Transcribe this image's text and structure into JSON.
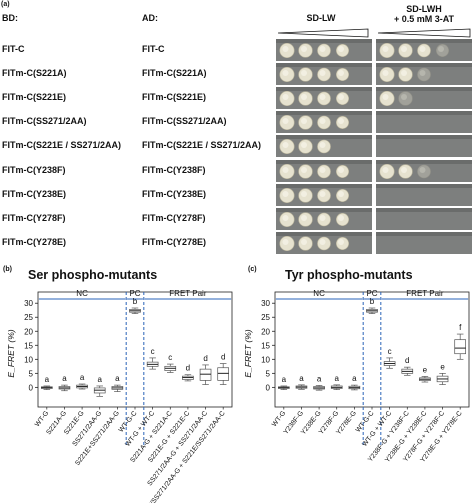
{
  "figure": {
    "panel_a": {
      "label": "(a)",
      "bd_header": "BD:",
      "ad_header": "AD:",
      "assay_lw": "SD-LW",
      "assay_lwh_line1": "SD-LWH",
      "assay_lwh_line2": "+ 0.5 mM 3-AT",
      "rows": [
        {
          "bd": "FIT-C",
          "ad": "FIT-C",
          "lw": 4,
          "lwh": 3
        },
        {
          "bd": "FITm-C(S221A)",
          "ad": "FITm-C(S221A)",
          "lw": 4,
          "lwh": 2
        },
        {
          "bd": "FITm-C(S221E)",
          "ad": "FITm-C(S221E)",
          "lw": 4,
          "lwh": 1
        },
        {
          "bd": "FITm-C(SS271/2AA)",
          "ad": "FITm-C(SS271/2AA)",
          "lw": 4,
          "lwh": 0
        },
        {
          "bd": "FITm-C(S221E / SS271/2AA)",
          "ad": "FITm-C(S221E / SS271/2AA)",
          "lw": 3,
          "lwh": 0
        },
        {
          "bd": "FITm-C(Y238F)",
          "ad": "FITm-C(Y238F)",
          "lw": 4,
          "lwh": 2
        },
        {
          "bd": "FITm-C(Y238E)",
          "ad": "FITm-C(Y238E)",
          "lw": 4,
          "lwh": 0
        },
        {
          "bd": "FITm-C(Y278F)",
          "ad": "FITm-C(Y278F)",
          "lw": 4,
          "lwh": 0
        },
        {
          "bd": "FITm-C(Y278E)",
          "ad": "FITm-C(Y278E)",
          "lw": 4,
          "lwh": 0
        }
      ]
    },
    "panel_b": {
      "label": "(b)",
      "title": "Ser phospho-mutants",
      "ylabel": "E_FRET (%)",
      "group_labels": [
        "NC",
        "PC",
        "FRET Pair"
      ]
    },
    "panel_c": {
      "label": "(c)",
      "title": "Tyr phospho-mutants",
      "ylabel": "E_FRET (%)",
      "group_labels": [
        "NC",
        "PC",
        "FRET Pair"
      ]
    }
  },
  "chart_data": [
    {
      "type": "box",
      "title": "Ser phospho-mutants",
      "ylabel": "E_FRET (%)",
      "ylim": [
        -7,
        34
      ],
      "yticks": [
        0,
        5,
        10,
        15,
        20,
        25,
        30
      ],
      "categories": [
        "WT-G",
        "S221A-G",
        "S221E-G",
        "SS271/2AA-G",
        "S221E+SS271/2AA-G",
        "WT-G-C",
        "WT-G + WT-C",
        "S221A-G + S221A-C",
        "S221E-G + S221E-C",
        "SS271/2AA-G + SS271/2AA-C",
        "S221E/SS271/2AA-G + S221E/SS271/2AA-C"
      ],
      "medians": [
        -0.1,
        -0.2,
        0.3,
        -1.0,
        -0.2,
        27.3,
        8.2,
        6.8,
        3.5,
        4.7,
        5.0
      ],
      "q1": [
        -0.4,
        -0.6,
        -0.2,
        -2.0,
        -0.7,
        26.8,
        7.5,
        6.0,
        2.8,
        2.5,
        2.5
      ],
      "q3": [
        0.2,
        0.3,
        0.8,
        -0.2,
        0.3,
        27.8,
        9.0,
        7.5,
        4.0,
        6.5,
        7.0
      ],
      "whisker_low": [
        -0.8,
        -1.2,
        -0.6,
        -3.2,
        -1.5,
        26.3,
        6.5,
        5.3,
        2.3,
        1.0,
        1.0
      ],
      "whisker_high": [
        0.5,
        0.8,
        1.2,
        0.5,
        0.8,
        28.3,
        10.5,
        8.3,
        4.5,
        8.0,
        8.5
      ],
      "significance_letters": [
        "a",
        "a",
        "a",
        "a",
        "a",
        "b",
        "c",
        "c",
        "d",
        "d",
        "d"
      ],
      "groups": [
        {
          "name": "NC",
          "range": [
            0,
            4
          ]
        },
        {
          "name": "PC",
          "range": [
            5,
            5
          ]
        },
        {
          "name": "FRET Pair",
          "range": [
            6,
            10
          ]
        }
      ]
    },
    {
      "type": "box",
      "title": "Tyr phospho-mutants",
      "ylabel": "E_FRET (%)",
      "ylim": [
        -7,
        34
      ],
      "yticks": [
        0,
        5,
        10,
        15,
        20,
        25,
        30
      ],
      "categories": [
        "WT-G",
        "Y238F-G",
        "Y238E-G",
        "Y278F-G",
        "Y278E-G",
        "WT-G-C",
        "WT-G + WT-C",
        "Y238F-G + Y238F-C",
        "Y238E-G + Y238E-C",
        "Y278F-G + Y278F-C",
        "Y278E-G + Y278E-C"
      ],
      "medians": [
        -0.1,
        0.1,
        -0.2,
        0.0,
        -0.1,
        27.3,
        8.5,
        5.7,
        2.9,
        3.0,
        14.0
      ],
      "q1": [
        -0.4,
        -0.3,
        -0.6,
        -0.4,
        -0.5,
        26.8,
        7.8,
        5.0,
        2.4,
        2.0,
        12.0
      ],
      "q3": [
        0.2,
        0.5,
        0.3,
        0.5,
        0.4,
        27.8,
        9.2,
        6.5,
        3.4,
        4.0,
        17.0
      ],
      "whisker_low": [
        -0.8,
        -0.7,
        -1.0,
        -0.8,
        -0.9,
        26.3,
        6.8,
        4.3,
        1.9,
        1.0,
        10.0
      ],
      "whisker_high": [
        0.5,
        0.9,
        0.7,
        0.9,
        0.8,
        28.3,
        10.5,
        7.2,
        3.9,
        5.0,
        19.0
      ],
      "significance_letters": [
        "a",
        "a",
        "a",
        "a",
        "a",
        "b",
        "c",
        "d",
        "e",
        "e",
        "f"
      ],
      "groups": [
        {
          "name": "NC",
          "range": [
            0,
            4
          ]
        },
        {
          "name": "PC",
          "range": [
            5,
            5
          ]
        },
        {
          "name": "FRET Pair",
          "range": [
            6,
            10
          ]
        }
      ]
    }
  ]
}
